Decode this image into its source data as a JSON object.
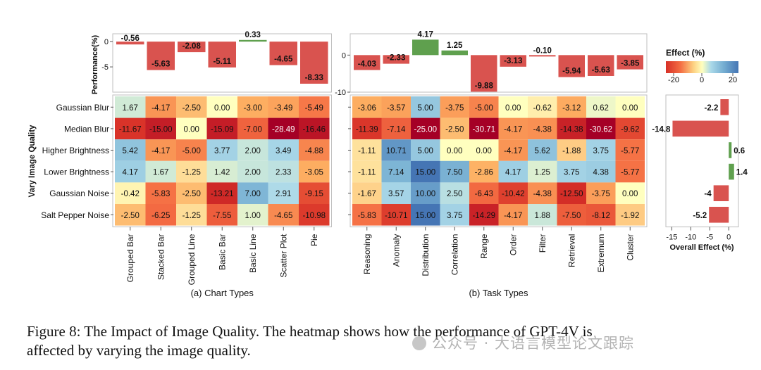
{
  "chart_data": {
    "type": "heatmap",
    "rows": [
      "Gaussian Blur",
      "Median Blur",
      "Higher Brightness",
      "Lower Brightness",
      "Gaussian Noise",
      "Salt Pepper Noise"
    ],
    "row_axis_label": "Vary Image Quality",
    "color_range": [
      -20,
      20
    ],
    "colorbar": {
      "title": "Effect (%)",
      "ticks": [
        "-20",
        "0",
        "20"
      ]
    },
    "chart_types": {
      "subtitle": "(a) Chart Types",
      "columns": [
        "Grouped Bar",
        "Stacked Bar",
        "Grouped Line",
        "Basic Bar",
        "Basic Line",
        "Scatter Plot",
        "Pie"
      ],
      "cells": [
        [
          "1.67",
          "-4.17",
          "-2.50",
          "0.00",
          "-3.00",
          "-3.49",
          "-5.49"
        ],
        [
          "-11.67",
          "-15.00",
          "0.00",
          "-15.09",
          "-7.00",
          "-28.49",
          "-16.46"
        ],
        [
          "5.42",
          "-4.17",
          "-5.00",
          "3.77",
          "2.00",
          "3.49",
          "-4.88"
        ],
        [
          "4.17",
          "1.67",
          "-1.25",
          "1.42",
          "2.00",
          "2.33",
          "-3.05"
        ],
        [
          "-0.42",
          "-5.83",
          "-2.50",
          "-13.21",
          "7.00",
          "2.91",
          "-9.15"
        ],
        [
          "-2.50",
          "-6.25",
          "-1.25",
          "-7.55",
          "1.00",
          "-4.65",
          "-10.98"
        ]
      ],
      "bar_values": [
        -0.56,
        -5.63,
        -2.08,
        -5.11,
        0.33,
        -4.65,
        -8.33
      ],
      "bar_labels": [
        "-0.56",
        "-5.63",
        "-2.08",
        "-5.11",
        "0.33",
        "-4.65",
        "-8.33"
      ],
      "bar_ylim": [
        -10,
        1
      ],
      "bar_yticks": [
        "0",
        "-5"
      ],
      "bar_ylabel": "Performance(%)"
    },
    "task_types": {
      "subtitle": "(b) Task Types",
      "columns": [
        "Reasoning",
        "Anomaly",
        "Distribution",
        "Correlation",
        "Range",
        "Order",
        "Filter",
        "Retrieval",
        "Extremum",
        "Cluster"
      ],
      "cells": [
        [
          "-3.06",
          "-3.57",
          "5.00",
          "-3.75",
          "-5.00",
          "0.00",
          "-0.62",
          "-3.12",
          "0.62",
          "0.00"
        ],
        [
          "-11.39",
          "-7.14",
          "-25.00",
          "-2.50",
          "-30.71",
          "-4.17",
          "-4.38",
          "-14.38",
          "-30.62",
          "-9.62"
        ],
        [
          "-1.11",
          "10.71",
          "5.00",
          "0.00",
          "0.00",
          "-4.17",
          "5.62",
          "-1.88",
          "3.75",
          "-5.77"
        ],
        [
          "-1.11",
          "7.14",
          "15.00",
          "7.50",
          "-2.86",
          "4.17",
          "1.25",
          "3.75",
          "4.38",
          "-5.77"
        ],
        [
          "-1.67",
          "3.57",
          "10.00",
          "2.50",
          "-6.43",
          "-10.42",
          "-4.38",
          "-12.50",
          "-3.75",
          "0.00"
        ],
        [
          "-5.83",
          "-10.71",
          "15.00",
          "3.75",
          "-14.29",
          "-4.17",
          "1.88",
          "-7.50",
          "-8.12",
          "-1.92"
        ]
      ],
      "bar_values": [
        -4.03,
        -2.33,
        4.17,
        1.25,
        -9.88,
        -3.13,
        -0.1,
        -5.94,
        -5.63,
        -3.85
      ],
      "bar_labels": [
        "-4.03",
        "-2.33",
        "4.17",
        "1.25",
        "-9.88",
        "-3.13",
        "-0.10",
        "-5.94",
        "-5.63",
        "-3.85"
      ],
      "bar_ylim": [
        -10,
        5
      ],
      "bar_yticks": [
        "0",
        "-10"
      ]
    },
    "overall_effect": {
      "values": [
        -2.2,
        -14.8,
        0.6,
        1.4,
        -4,
        -5.2
      ],
      "labels": [
        "-2.2",
        "-14.8",
        "0.6",
        "1.4",
        "-4",
        "-5.2"
      ],
      "xlim": [
        -16,
        2
      ],
      "xticks": [
        "-15",
        "-10",
        "-5",
        "0"
      ],
      "xlabel": "Overall Effect (%)"
    },
    "colors": {
      "negative_bar": "#d9534f",
      "positive_bar": "#5fa04e"
    }
  },
  "caption": {
    "line1": "Figure 8: The Impact of Image Quality. The heatmap shows how the performance of GPT-4V is",
    "line2": "affected by varying the image quality."
  },
  "watermark": "公众号 · 大语言模型论文跟踪"
}
